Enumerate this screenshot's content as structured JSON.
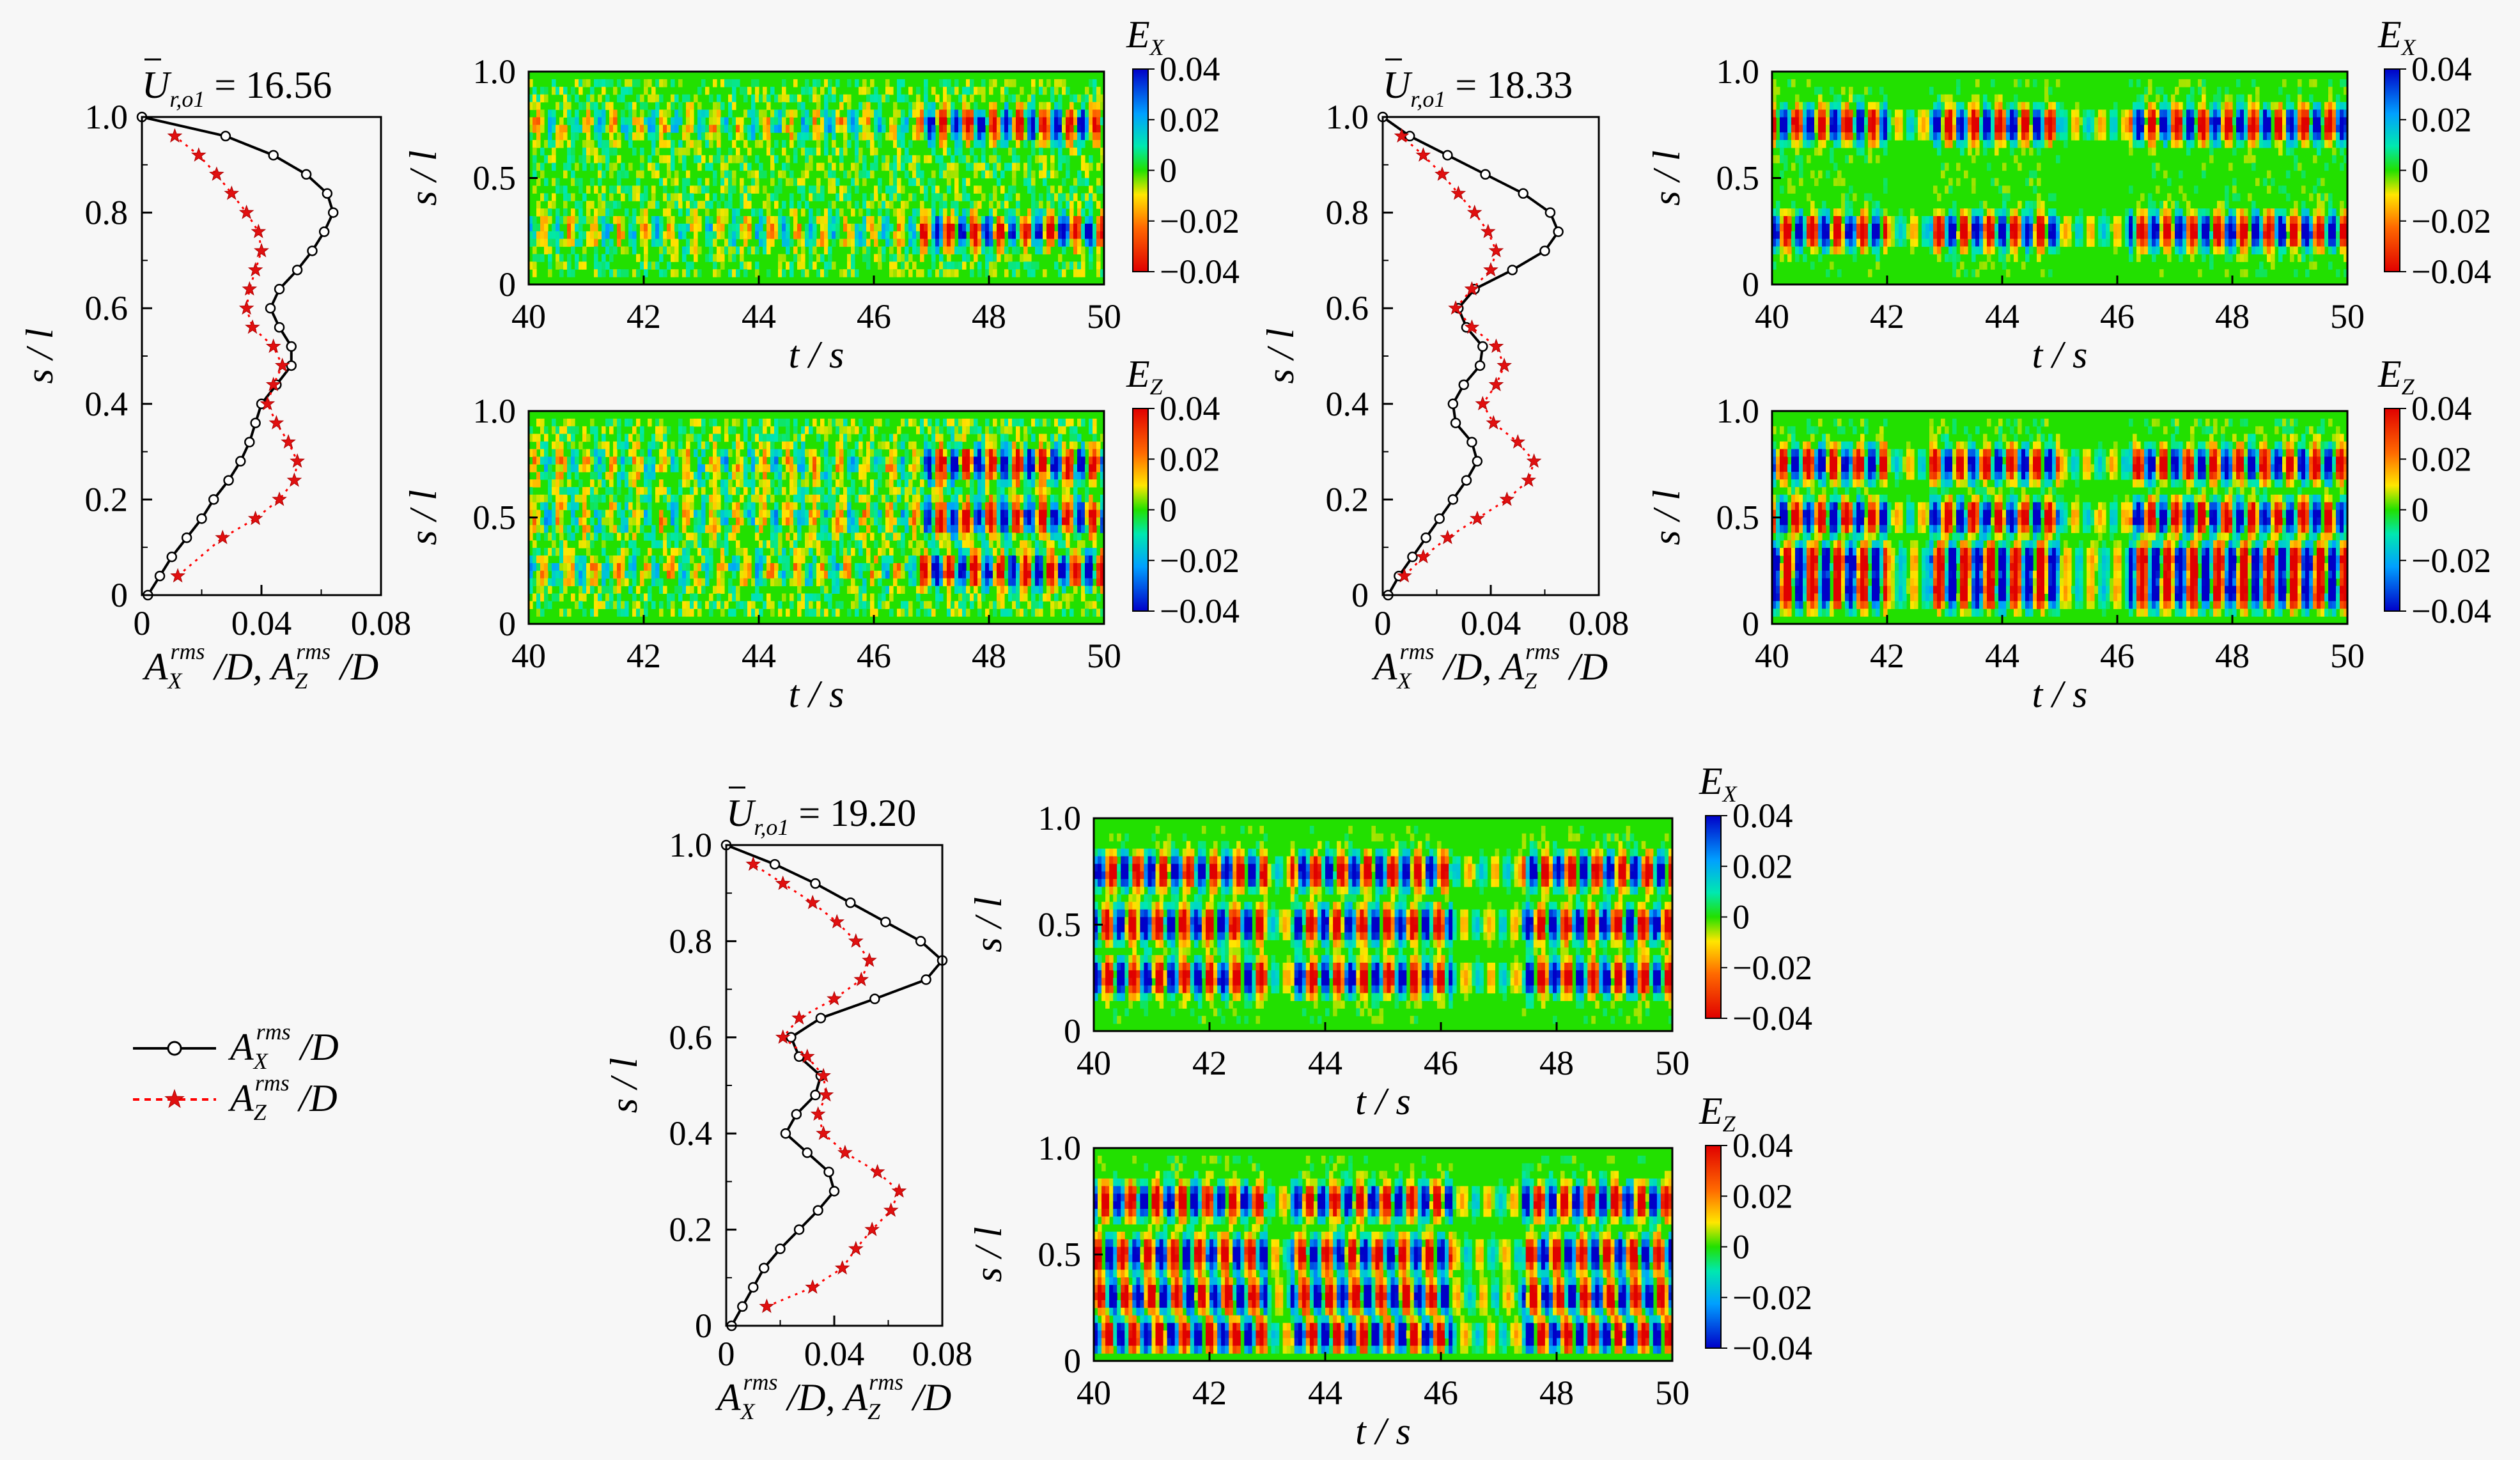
{
  "chart_data": [
    {
      "type": "line",
      "panel": "profile",
      "title_symbol": "U",
      "title_sub": "r,o1",
      "title_value": "16.56",
      "xlabel_parts": [
        "A",
        "X",
        "rms",
        " /D, ",
        "A",
        "Z",
        "rms",
        " /D"
      ],
      "ylabel": "s / l",
      "xlim": [
        0,
        0.08
      ],
      "ylim": [
        0,
        1.0
      ],
      "xticks": [
        "0",
        "0.04",
        "0.08"
      ],
      "yticks": [
        "0",
        "0.2",
        "0.4",
        "0.6",
        "0.8",
        "1.0"
      ],
      "series": [
        {
          "name": "AX_rms/D",
          "color": "#000000",
          "y": [
            0,
            0.04,
            0.08,
            0.12,
            0.16,
            0.2,
            0.24,
            0.28,
            0.32,
            0.36,
            0.4,
            0.44,
            0.48,
            0.52,
            0.56,
            0.6,
            0.64,
            0.68,
            0.72,
            0.76,
            0.8,
            0.84,
            0.88,
            0.92,
            0.96,
            1.0
          ],
          "x": [
            0.002,
            0.006,
            0.01,
            0.015,
            0.02,
            0.024,
            0.029,
            0.033,
            0.036,
            0.038,
            0.04,
            0.045,
            0.05,
            0.05,
            0.046,
            0.043,
            0.046,
            0.052,
            0.057,
            0.061,
            0.064,
            0.062,
            0.055,
            0.044,
            0.028,
            0
          ]
        },
        {
          "name": "AZ_rms/D",
          "color": "#ff0000",
          "y": [
            0.04,
            0.12,
            0.16,
            0.2,
            0.24,
            0.28,
            0.32,
            0.36,
            0.4,
            0.44,
            0.48,
            0.52,
            0.56,
            0.6,
            0.64,
            0.68,
            0.72,
            0.76,
            0.8,
            0.84,
            0.88,
            0.92,
            0.96
          ],
          "x": [
            0.012,
            0.027,
            0.038,
            0.046,
            0.051,
            0.052,
            0.049,
            0.045,
            0.042,
            0.044,
            0.047,
            0.044,
            0.037,
            0.035,
            0.036,
            0.038,
            0.04,
            0.039,
            0.035,
            0.03,
            0.025,
            0.019,
            0.011
          ]
        }
      ]
    },
    {
      "type": "heatmap",
      "panel": "contour",
      "quantity": "E",
      "quantity_sub": "X",
      "xlabel": "t / s",
      "ylabel": "s / l",
      "xticks": [
        "40",
        "42",
        "44",
        "46",
        "48",
        "50"
      ],
      "yticks": [
        "0",
        "0.5",
        "1.0"
      ],
      "colorbar_ticks": [
        "0.04",
        "0.02",
        "0",
        "−0.02",
        "−0.04"
      ],
      "xlim": [
        40,
        50
      ],
      "ylim": [
        0,
        1.0
      ],
      "clim": [
        -0.04,
        0.04
      ],
      "pattern": {
        "seed": 11,
        "bands": [
          0.25,
          0.75
        ],
        "strong_from": 46.8,
        "strong_to": 50,
        "color_gain": 0.8,
        "noise": 0.5
      }
    },
    {
      "type": "heatmap",
      "panel": "contour",
      "quantity": "E",
      "quantity_sub": "Z",
      "xlabel": "t / s",
      "ylabel": "s / l",
      "xticks": [
        "40",
        "42",
        "44",
        "46",
        "48",
        "50"
      ],
      "yticks": [
        "0",
        "0.5",
        "1.0"
      ],
      "colorbar_ticks": [
        "0.04",
        "0.02",
        "0",
        "−0.02",
        "−0.04"
      ],
      "xlim": [
        40,
        50
      ],
      "ylim": [
        0,
        1.0
      ],
      "clim": [
        -0.04,
        0.04
      ],
      "pattern": {
        "seed": 23,
        "bands": [
          0.25,
          0.5,
          0.75
        ],
        "strong_from": 46.8,
        "strong_to": 50,
        "color_gain": 0.9,
        "noise": 0.55
      }
    },
    {
      "type": "line",
      "panel": "profile",
      "title_symbol": "U",
      "title_sub": "r,o1",
      "title_value": "18.33",
      "xlabel_parts": [
        "A",
        "X",
        "rms",
        " /D, ",
        "A",
        "Z",
        "rms",
        " /D"
      ],
      "ylabel": "s / l",
      "xlim": [
        0,
        0.08
      ],
      "ylim": [
        0,
        1.0
      ],
      "xticks": [
        "0",
        "0.04",
        "0.08"
      ],
      "yticks": [
        "0",
        "0.2",
        "0.4",
        "0.6",
        "0.8",
        "1.0"
      ],
      "series": [
        {
          "name": "AX_rms/D",
          "color": "#000000",
          "y": [
            0,
            0.04,
            0.08,
            0.12,
            0.16,
            0.2,
            0.24,
            0.28,
            0.32,
            0.36,
            0.4,
            0.44,
            0.48,
            0.52,
            0.56,
            0.6,
            0.64,
            0.68,
            0.72,
            0.76,
            0.8,
            0.84,
            0.88,
            0.92,
            0.96,
            1.0
          ],
          "x": [
            0.002,
            0.006,
            0.011,
            0.016,
            0.021,
            0.026,
            0.031,
            0.035,
            0.033,
            0.027,
            0.026,
            0.03,
            0.036,
            0.037,
            0.031,
            0.028,
            0.034,
            0.048,
            0.06,
            0.065,
            0.062,
            0.052,
            0.038,
            0.024,
            0.01,
            0
          ]
        },
        {
          "name": "AZ_rms/D",
          "color": "#ff0000",
          "y": [
            0.04,
            0.08,
            0.12,
            0.16,
            0.2,
            0.24,
            0.28,
            0.32,
            0.36,
            0.4,
            0.44,
            0.48,
            0.52,
            0.56,
            0.6,
            0.64,
            0.68,
            0.72,
            0.76,
            0.8,
            0.84,
            0.88,
            0.92,
            0.96
          ],
          "x": [
            0.008,
            0.015,
            0.024,
            0.035,
            0.046,
            0.054,
            0.056,
            0.05,
            0.041,
            0.037,
            0.042,
            0.045,
            0.042,
            0.033,
            0.027,
            0.033,
            0.04,
            0.042,
            0.039,
            0.034,
            0.028,
            0.022,
            0.015,
            0.007
          ]
        }
      ]
    },
    {
      "type": "heatmap",
      "panel": "contour",
      "quantity": "E",
      "quantity_sub": "X",
      "xlabel": "t / s",
      "ylabel": "s / l",
      "xticks": [
        "40",
        "42",
        "44",
        "46",
        "48",
        "50"
      ],
      "yticks": [
        "0",
        "0.5",
        "1.0"
      ],
      "colorbar_ticks": [
        "0.04",
        "0.02",
        "0",
        "−0.02",
        "−0.04"
      ],
      "xlim": [
        40,
        50
      ],
      "ylim": [
        0,
        1.0
      ],
      "clim": [
        -0.04,
        0.04
      ],
      "pattern": {
        "seed": 37,
        "bands": [
          0.25,
          0.75
        ],
        "gaps": [
          [
            42.0,
            42.7
          ],
          [
            45.0,
            46.2
          ]
        ],
        "strong_from": 40,
        "strong_to": 50,
        "color_gain": 1.0,
        "noise": 0.3
      }
    },
    {
      "type": "heatmap",
      "panel": "contour",
      "quantity": "E",
      "quantity_sub": "Z",
      "xlabel": "t / s",
      "ylabel": "s / l",
      "xticks": [
        "40",
        "42",
        "44",
        "46",
        "48",
        "50"
      ],
      "yticks": [
        "0",
        "0.5",
        "1.0"
      ],
      "colorbar_ticks": [
        "0.04",
        "0.02",
        "0",
        "−0.02",
        "−0.04"
      ],
      "xlim": [
        40,
        50
      ],
      "ylim": [
        0,
        1.0
      ],
      "clim": [
        -0.04,
        0.04
      ],
      "pattern": {
        "seed": 41,
        "bands": [
          0.15,
          0.3,
          0.5,
          0.75
        ],
        "gaps": [
          [
            42.0,
            42.7
          ],
          [
            45.0,
            46.2
          ]
        ],
        "strong_from": 40,
        "strong_to": 50,
        "color_gain": 1.0,
        "noise": 0.35
      }
    },
    {
      "type": "line",
      "panel": "profile",
      "title_symbol": "U",
      "title_sub": "r,o1",
      "title_value": "19.20",
      "xlabel_parts": [
        "A",
        "X",
        "rms",
        " /D, ",
        "A",
        "Z",
        "rms",
        " /D"
      ],
      "ylabel": "s / l",
      "xlim": [
        0,
        0.08
      ],
      "ylim": [
        0,
        1.0
      ],
      "xticks": [
        "0",
        "0.04",
        "0.08"
      ],
      "yticks": [
        "0",
        "0.2",
        "0.4",
        "0.6",
        "0.8",
        "1.0"
      ],
      "series": [
        {
          "name": "AX_rms/D",
          "color": "#000000",
          "y": [
            0,
            0.04,
            0.08,
            0.12,
            0.16,
            0.2,
            0.24,
            0.28,
            0.32,
            0.36,
            0.4,
            0.44,
            0.48,
            0.52,
            0.56,
            0.6,
            0.64,
            0.68,
            0.72,
            0.76,
            0.8,
            0.84,
            0.88,
            0.92,
            0.96,
            1.0
          ],
          "x": [
            0.002,
            0.006,
            0.01,
            0.014,
            0.02,
            0.027,
            0.034,
            0.04,
            0.038,
            0.03,
            0.022,
            0.026,
            0.033,
            0.035,
            0.027,
            0.024,
            0.035,
            0.055,
            0.074,
            0.08,
            0.072,
            0.059,
            0.046,
            0.033,
            0.018,
            0
          ]
        },
        {
          "name": "AZ_rms/D",
          "color": "#ff0000",
          "y": [
            0.04,
            0.08,
            0.12,
            0.16,
            0.2,
            0.24,
            0.28,
            0.32,
            0.36,
            0.4,
            0.44,
            0.48,
            0.52,
            0.56,
            0.6,
            0.64,
            0.68,
            0.72,
            0.76,
            0.8,
            0.84,
            0.88,
            0.92,
            0.96
          ],
          "x": [
            0.015,
            0.032,
            0.043,
            0.048,
            0.054,
            0.061,
            0.064,
            0.056,
            0.044,
            0.036,
            0.034,
            0.037,
            0.036,
            0.03,
            0.021,
            0.027,
            0.04,
            0.05,
            0.053,
            0.048,
            0.041,
            0.032,
            0.021,
            0.01
          ]
        }
      ]
    },
    {
      "type": "heatmap",
      "panel": "contour",
      "quantity": "E",
      "quantity_sub": "X",
      "xlabel": "t / s",
      "ylabel": "s / l",
      "xticks": [
        "40",
        "42",
        "44",
        "46",
        "48",
        "50"
      ],
      "yticks": [
        "0",
        "0.5",
        "1.0"
      ],
      "colorbar_ticks": [
        "0.04",
        "0.02",
        "0",
        "−0.02",
        "−0.04"
      ],
      "xlim": [
        40,
        50
      ],
      "ylim": [
        0,
        1.0
      ],
      "clim": [
        -0.04,
        0.04
      ],
      "pattern": {
        "seed": 53,
        "bands": [
          0.25,
          0.5,
          0.75
        ],
        "gaps": [
          [
            43.0,
            43.4
          ],
          [
            46.2,
            47.4
          ]
        ],
        "strong_from": 40,
        "strong_to": 50,
        "color_gain": 1.0,
        "noise": 0.3
      }
    },
    {
      "type": "heatmap",
      "panel": "contour",
      "quantity": "E",
      "quantity_sub": "Z",
      "xlabel": "t / s",
      "ylabel": "s / l",
      "xticks": [
        "40",
        "42",
        "44",
        "46",
        "48",
        "50"
      ],
      "yticks": [
        "0",
        "0.5",
        "1.0"
      ],
      "colorbar_ticks": [
        "0.04",
        "0.02",
        "0",
        "−0.02",
        "−0.04"
      ],
      "xlim": [
        40,
        50
      ],
      "ylim": [
        0,
        1.0
      ],
      "clim": [
        -0.04,
        0.04
      ],
      "pattern": {
        "seed": 67,
        "bands": [
          0.12,
          0.3,
          0.5,
          0.75
        ],
        "gaps": [
          [
            43.0,
            43.4
          ],
          [
            46.2,
            47.4
          ]
        ],
        "strong_from": 40,
        "strong_to": 50,
        "color_gain": 1.0,
        "noise": 0.3
      }
    }
  ],
  "legend": {
    "items": [
      {
        "symbol": "A",
        "sub": "X",
        "sup": "rms",
        "suffix": " /D",
        "color": "#000000",
        "marker": "circle",
        "dash": "solid"
      },
      {
        "symbol": "A",
        "sub": "Z",
        "sup": "rms",
        "suffix": " /D",
        "color": "#ff0000",
        "marker": "star",
        "dash": "dotted"
      }
    ]
  }
}
